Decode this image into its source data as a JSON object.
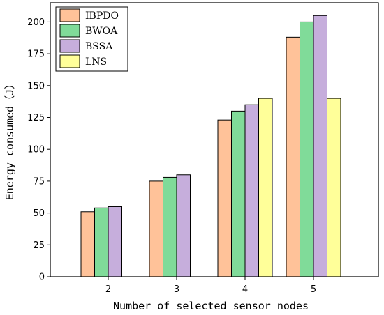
{
  "chart_data": {
    "type": "bar",
    "title": "",
    "xlabel": "Number of selected sensor nodes",
    "ylabel": "Energy consumed（J）",
    "categories": [
      "2",
      "3",
      "4",
      "5"
    ],
    "ylim": [
      0,
      215
    ],
    "yticks": [
      0,
      25,
      50,
      75,
      100,
      125,
      150,
      175,
      200
    ],
    "legend_position": "top-left",
    "grid": false,
    "series": [
      {
        "name": "IBPDO",
        "color": "#FFC299",
        "values": [
          51,
          75,
          123,
          188
        ]
      },
      {
        "name": "BWOA",
        "color": "#80DB99",
        "values": [
          54,
          78,
          130,
          200
        ]
      },
      {
        "name": "BSSA",
        "color": "#C6AEDC",
        "values": [
          55,
          80,
          135,
          205
        ]
      },
      {
        "name": "LNS",
        "color": "#FFFF99",
        "values": [
          null,
          null,
          140,
          140
        ]
      }
    ]
  }
}
